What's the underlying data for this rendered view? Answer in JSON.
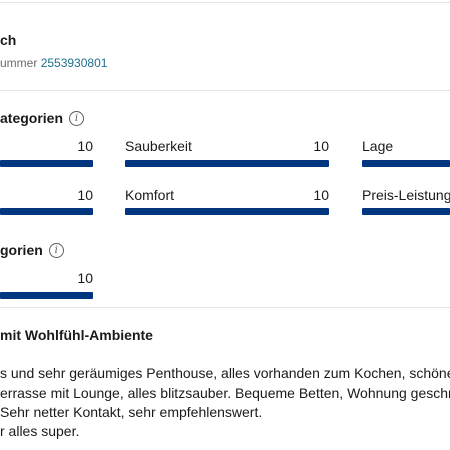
{
  "review": {
    "reviewer_name": "ch",
    "booking_label": "ummer",
    "booking_number": "2553930801"
  },
  "categories_section": {
    "title": "ategorien",
    "items": [
      {
        "label": "",
        "score": "10",
        "fill": 1.0
      },
      {
        "label": "Sauberkeit",
        "score": "10",
        "fill": 1.0
      },
      {
        "label": "Lage",
        "score": "",
        "fill": 1.0
      },
      {
        "label": "",
        "score": "10",
        "fill": 1.0
      },
      {
        "label": "Komfort",
        "score": "10",
        "fill": 1.0
      },
      {
        "label": "Preis-Leistungs",
        "score": "",
        "fill": 1.0
      }
    ]
  },
  "sub_section": {
    "title": "gorien",
    "items": [
      {
        "label": "",
        "score": "10",
        "fill": 1.0
      }
    ]
  },
  "review_text": {
    "title": "mit Wohlfühl-Ambiente",
    "lines": [
      "s und sehr geräumiges Penthouse, alles vorhanden zum Kochen, schöne,",
      "errasse mit Lounge, alles blitzsauber. Bequeme Betten, Wohnung geschma",
      "Sehr netter Kontakt, sehr empfehlenswert.",
      "r alles super."
    ]
  },
  "icons": {
    "info": "info-icon"
  },
  "colors": {
    "bar": "#003580",
    "link": "#1f6f8b"
  }
}
